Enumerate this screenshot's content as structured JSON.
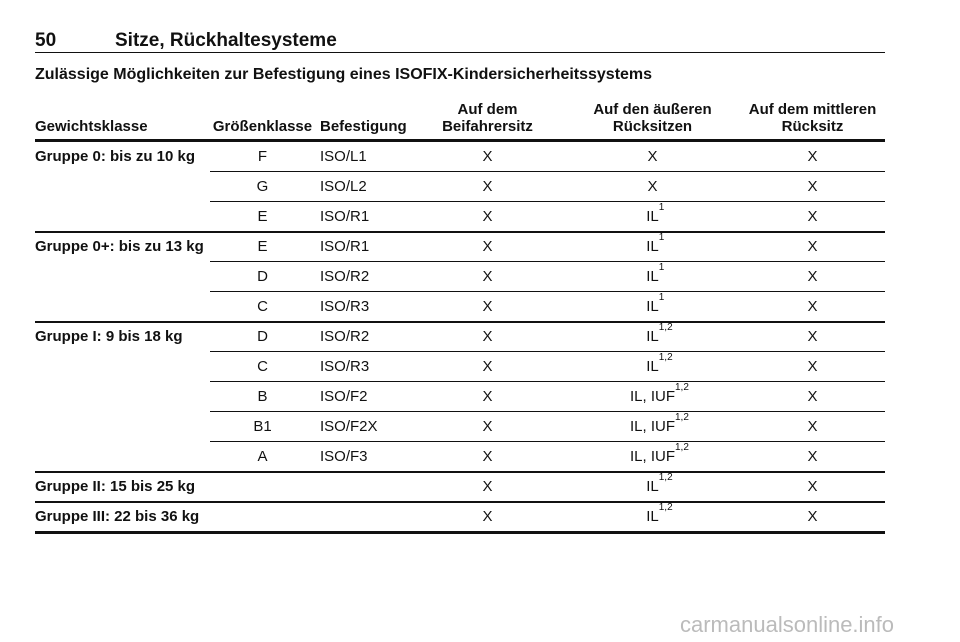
{
  "header": {
    "page_number": "50",
    "title": "Sitze, Rückhaltesysteme"
  },
  "subtitle": "Zulässige Möglichkeiten zur Befestigung eines ISOFIX-Kindersicherheitssystems",
  "table": {
    "columns": [
      [
        "Gewichtsklasse"
      ],
      [
        "Größenklasse"
      ],
      [
        "Befestigung"
      ],
      [
        "Auf dem Beifahrersitz"
      ],
      [
        "Auf den äußeren",
        "Rücksitzen"
      ],
      [
        "Auf dem mittleren",
        "Rücksitz"
      ]
    ],
    "groups": [
      {
        "label": "Gruppe 0: bis zu 10 kg",
        "rows": [
          {
            "size": "F",
            "fixation": "ISO/L1",
            "front": "X",
            "outer": {
              "text": "X"
            },
            "middle": "X"
          },
          {
            "size": "G",
            "fixation": "ISO/L2",
            "front": "X",
            "outer": {
              "text": "X"
            },
            "middle": "X"
          },
          {
            "size": "E",
            "fixation": "ISO/R1",
            "front": "X",
            "outer": {
              "text": "IL",
              "sup": "1"
            },
            "middle": "X"
          }
        ]
      },
      {
        "label": "Gruppe 0+: bis zu 13 kg",
        "rows": [
          {
            "size": "E",
            "fixation": "ISO/R1",
            "front": "X",
            "outer": {
              "text": "IL",
              "sup": "1"
            },
            "middle": "X"
          },
          {
            "size": "D",
            "fixation": "ISO/R2",
            "front": "X",
            "outer": {
              "text": "IL",
              "sup": "1"
            },
            "middle": "X"
          },
          {
            "size": "C",
            "fixation": "ISO/R3",
            "front": "X",
            "outer": {
              "text": "IL",
              "sup": "1"
            },
            "middle": "X"
          }
        ]
      },
      {
        "label": "Gruppe I: 9 bis 18 kg",
        "rows": [
          {
            "size": "D",
            "fixation": "ISO/R2",
            "front": "X",
            "outer": {
              "text": "IL",
              "sup": "1,2"
            },
            "middle": "X"
          },
          {
            "size": "C",
            "fixation": "ISO/R3",
            "front": "X",
            "outer": {
              "text": "IL",
              "sup": "1,2"
            },
            "middle": "X"
          },
          {
            "size": "B",
            "fixation": "ISO/F2",
            "front": "X",
            "outer": {
              "text": "IL, IUF",
              "sup": "1,2"
            },
            "middle": "X"
          },
          {
            "size": "B1",
            "fixation": "ISO/F2X",
            "front": "X",
            "outer": {
              "text": "IL, IUF",
              "sup": "1,2"
            },
            "middle": "X"
          },
          {
            "size": "A",
            "fixation": "ISO/F3",
            "front": "X",
            "outer": {
              "text": "IL, IUF",
              "sup": "1,2"
            },
            "middle": "X"
          }
        ]
      },
      {
        "label": "Gruppe II: 15 bis 25 kg",
        "rows": [
          {
            "front": "X",
            "outer": {
              "text": "IL",
              "sup": "1,2"
            },
            "middle": "X"
          }
        ]
      },
      {
        "label": "Gruppe III: 22 bis 36 kg",
        "rows": [
          {
            "front": "X",
            "outer": {
              "text": "IL",
              "sup": "1,2"
            },
            "middle": "X"
          }
        ]
      }
    ]
  },
  "watermark": "carmanualsonline.info"
}
